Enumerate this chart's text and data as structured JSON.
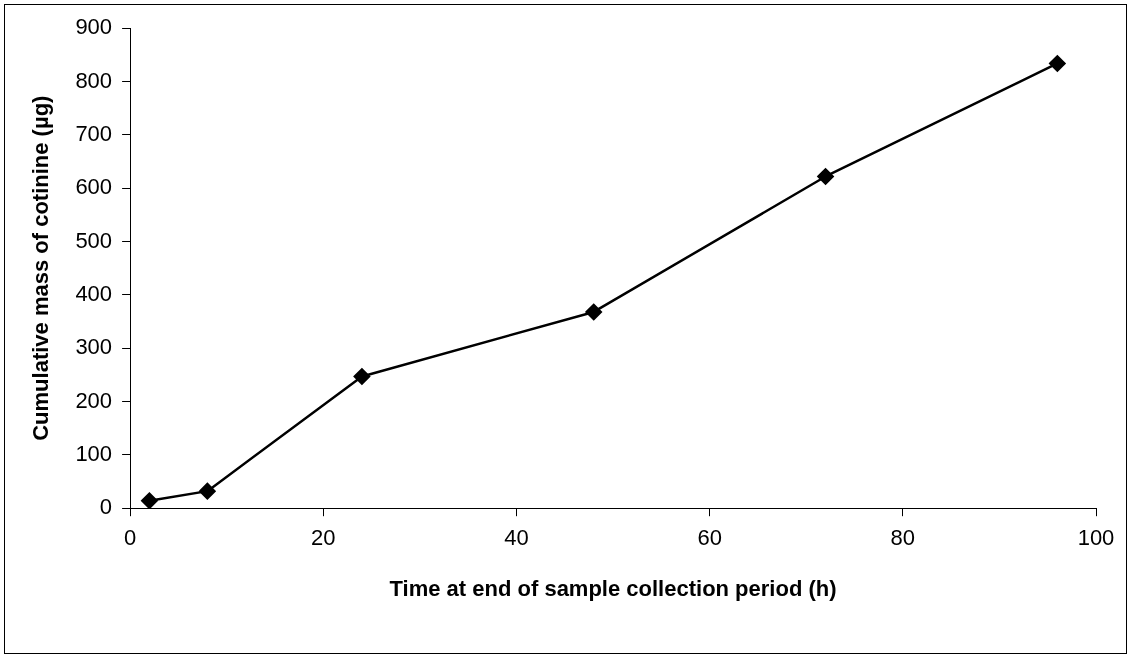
{
  "chart_data": {
    "type": "line",
    "xlabel": "Time at end of sample collection period (h)",
    "ylabel": "Cumulative mass of cotinine (µg)",
    "x": [
      2,
      8,
      24,
      48,
      72,
      96
    ],
    "series": [
      {
        "color": "#000000",
        "values": [
          14,
          32,
          247,
          368,
          622,
          834
        ]
      }
    ],
    "xlim": [
      0,
      100
    ],
    "xticks": [
      0,
      20,
      40,
      60,
      80,
      100
    ],
    "ylim": [
      0,
      900
    ],
    "yticks": [
      0,
      100,
      200,
      300,
      400,
      500,
      600,
      700,
      800,
      900
    ],
    "grid": false,
    "legend": false,
    "marker": "diamond",
    "line_style": "solid"
  }
}
